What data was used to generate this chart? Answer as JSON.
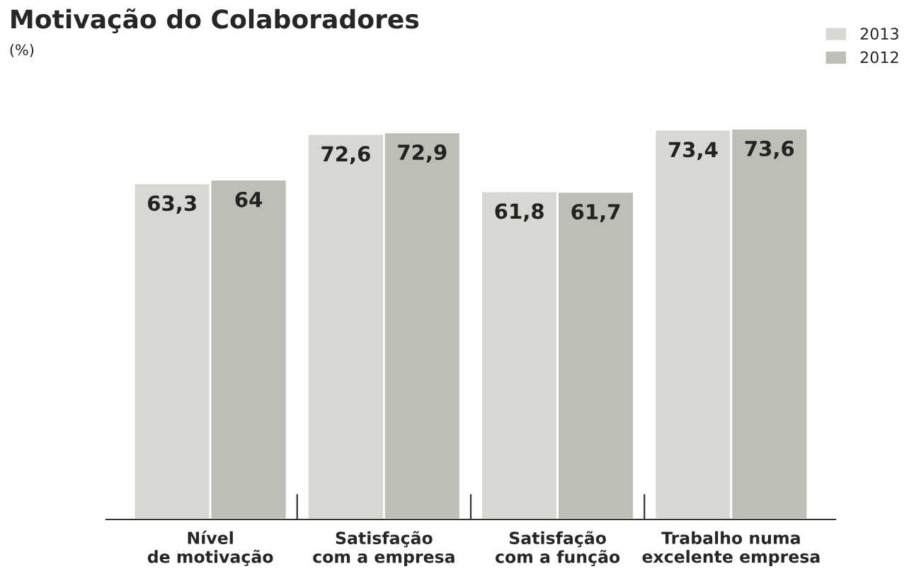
{
  "chart_data": {
    "type": "bar",
    "title": "Motivação do Colaboradores",
    "subtitle": "(%)",
    "categories": [
      "Nível\nde motivação",
      "Satisfação\ncom a empresa",
      "Satisfação\ncom a função",
      "Trabalho numa\nexcelente empresa"
    ],
    "series": [
      {
        "name": "2013",
        "color": "#d8d8d3",
        "values": [
          63.3,
          72.6,
          61.8,
          73.4
        ],
        "value_labels": [
          "63,3",
          "72,6",
          "61,8",
          "73,4"
        ]
      },
      {
        "name": "2012",
        "color": "#bfbeb6",
        "values": [
          64,
          72.9,
          61.7,
          73.6
        ],
        "value_labels": [
          "64",
          "72,9",
          "61,7",
          "73,6"
        ]
      }
    ],
    "tick_labels": "x",
    "legend": "top right"
  }
}
